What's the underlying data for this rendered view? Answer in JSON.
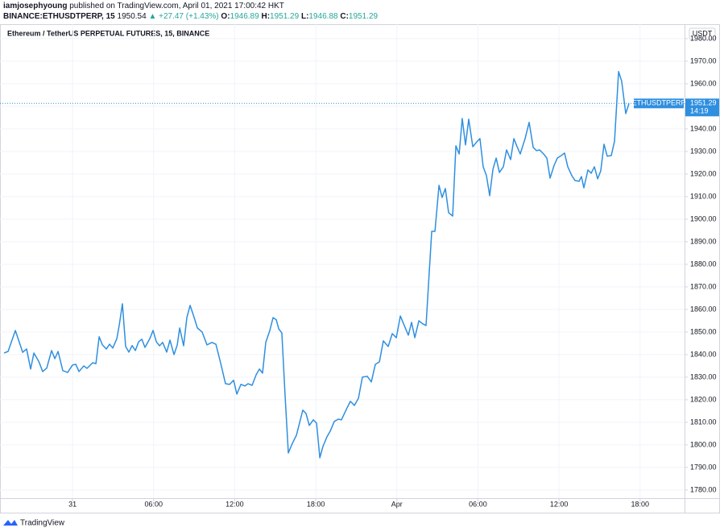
{
  "header": {
    "author": "iamjosephyoung",
    "published": "published on TradingView.com, April 01, 2021 17:00:42 HKT",
    "symbol": "BINANCE:ETHUSDTPERP, 15",
    "last": "1950.54",
    "change": "▲ +27.47 (+1.43%)",
    "open_label": "O:",
    "open": "1946.89",
    "high_label": "H:",
    "high": "1951.29",
    "low_label": "L:",
    "low": "1946.88",
    "close_label": "C:",
    "close": "1951.29"
  },
  "footer": {
    "brand": "TradingView"
  },
  "chart_data": {
    "type": "line",
    "title": "Ethereum / TetherUS PERPETUAL FUTURES, 15, BINANCE",
    "y_label": "USDT",
    "x": [
      -5.07,
      -4.77,
      -4.23,
      -3.69,
      -3.4,
      -3.1,
      -2.86,
      -2.5,
      -2.21,
      -1.91,
      -1.55,
      -1.31,
      -1.07,
      -0.72,
      -0.36,
      0,
      0.24,
      0.48,
      0.83,
      1.07,
      1.49,
      1.73,
      1.97,
      2.21,
      2.5,
      2.74,
      2.98,
      3.28,
      3.46,
      3.69,
      3.93,
      4.17,
      4.41,
      4.65,
      4.89,
      5.13,
      5.36,
      5.72,
      5.96,
      6.2,
      6.44,
      6.67,
      6.97,
      7.21,
      7.51,
      7.75,
      7.93,
      8.22,
      8.46,
      8.7,
      8.94,
      9.24,
      9.59,
      9.95,
      10.31,
      10.61,
      10.97,
      11.32,
      11.62,
      11.92,
      12.16,
      12.46,
      12.75,
      12.99,
      13.29,
      13.59,
      13.83,
      14.06,
      14.3,
      14.6,
      14.84,
      15.08,
      15.26,
      15.49,
      15.73,
      15.97,
      16.27,
      16.57,
      17.04,
      17.28,
      17.52,
      17.82,
      18.06,
      18.3,
      18.53,
      18.83,
      19.07,
      19.37,
      19.67,
      19.9,
      20.26,
      20.56,
      20.86,
      21.16,
      21.45,
      21.81,
      22.11,
      22.41,
      22.71,
      23.0,
      23.36,
      23.66,
      23.96,
      24.26,
      24.55,
      24.85,
      25.09,
      25.33,
      25.63,
      25.92,
      26.16,
      26.58,
      26.82,
      27.12,
      27.35,
      27.59,
      27.83,
      28.13,
      28.37,
      28.61,
      28.84,
      29.08,
      29.32,
      29.62,
      29.92,
      30.15,
      30.39,
      30.63,
      30.87,
      31.11,
      31.35,
      31.59,
      31.88,
      32.12,
      32.42,
      32.66,
      32.9,
      33.13,
      33.49,
      33.79,
      34.09,
      34.33,
      34.56,
      34.86,
      35.1,
      35.34,
      35.64,
      35.88,
      36.17,
      36.41,
      36.65,
      36.95,
      37.19,
      37.49,
      37.66,
      37.84,
      38.14,
      38.38,
      38.62,
      38.86,
      39.09,
      39.33,
      39.57,
      39.87,
      40.11,
      40.41,
      40.64,
      40.94,
      41.18
    ],
    "series": [
      {
        "name": "ETHUSDTPERP",
        "color": "#2e8fe0",
        "values": [
          1840.7,
          1841.4,
          1850.7,
          1841,
          1842.5,
          1833.6,
          1840.7,
          1837,
          1832.5,
          1834,
          1841.8,
          1838.2,
          1841.4,
          1832.9,
          1832.1,
          1835.4,
          1835.7,
          1832.5,
          1835,
          1833.9,
          1836.4,
          1836,
          1847.9,
          1844.3,
          1842.5,
          1844.6,
          1842.9,
          1847.1,
          1853.2,
          1862.5,
          1843.6,
          1841.1,
          1844,
          1841.8,
          1845.7,
          1846.8,
          1843.2,
          1847.1,
          1850.7,
          1845.7,
          1843.9,
          1845.4,
          1841.1,
          1846.4,
          1840,
          1844.3,
          1851.8,
          1843.9,
          1856.4,
          1861.8,
          1857.5,
          1851.8,
          1850,
          1844.3,
          1845.4,
          1844.6,
          1836,
          1827.1,
          1826.8,
          1828.6,
          1822.5,
          1826.8,
          1826.1,
          1827.1,
          1826.4,
          1831.1,
          1833.6,
          1831.8,
          1845.4,
          1850.7,
          1856.4,
          1855.4,
          1851.4,
          1849.6,
          1821.8,
          1796.4,
          1800.7,
          1804.3,
          1815.4,
          1813.9,
          1808.6,
          1811.1,
          1809.6,
          1794.3,
          1799.3,
          1803.6,
          1806.1,
          1810.4,
          1811.4,
          1811.1,
          1815.7,
          1819.3,
          1817.5,
          1820.7,
          1830,
          1830.4,
          1827.9,
          1835.7,
          1836.8,
          1846.1,
          1843.6,
          1849.3,
          1847.5,
          1857.1,
          1852.9,
          1848.6,
          1854.3,
          1847.5,
          1855,
          1853.6,
          1852.9,
          1894.6,
          1894.6,
          1915,
          1909.6,
          1913.6,
          1902.9,
          1901.4,
          1932.5,
          1928.9,
          1944.6,
          1932.9,
          1944.3,
          1932.1,
          1934.3,
          1935.7,
          1923.2,
          1919.3,
          1910.4,
          1922.1,
          1927.1,
          1920.7,
          1923.2,
          1930.7,
          1926.4,
          1935.7,
          1932.1,
          1928.9,
          1935.7,
          1942.9,
          1931.8,
          1930.4,
          1930.7,
          1928.9,
          1927.1,
          1918.2,
          1923.9,
          1927.1,
          1928.2,
          1929.3,
          1923.2,
          1919.3,
          1917.1,
          1916.8,
          1918.9,
          1913.9,
          1921.8,
          1920.4,
          1923.2,
          1917.9,
          1921.4,
          1933.2,
          1927.9,
          1928.2,
          1934.6,
          1965.4,
          1961.1,
          1946.8,
          1951.29
        ]
      }
    ],
    "last_price": 1951.29,
    "countdown": "14:19",
    "xlim": [
      -5.07,
      45.29
    ],
    "xticks": [
      {
        "value": 0,
        "label": "31"
      },
      {
        "value": 6,
        "label": "06:00"
      },
      {
        "value": 12,
        "label": "12:00"
      },
      {
        "value": 18,
        "label": "18:00"
      },
      {
        "value": 24,
        "label": "Apr"
      },
      {
        "value": 30,
        "label": "06:00"
      },
      {
        "value": 36,
        "label": "12:00"
      },
      {
        "value": 42,
        "label": "18:00"
      }
    ],
    "ylim": [
      1776.4,
      1986.4
    ],
    "yticks": [
      {
        "value": 1780,
        "label": "1780.00"
      },
      {
        "value": 1790,
        "label": "1790.00"
      },
      {
        "value": 1800,
        "label": "1800.00"
      },
      {
        "value": 1810,
        "label": "1810.00"
      },
      {
        "value": 1820,
        "label": "1820.00"
      },
      {
        "value": 1830,
        "label": "1830.00"
      },
      {
        "value": 1840,
        "label": "1840.00"
      },
      {
        "value": 1850,
        "label": "1850.00"
      },
      {
        "value": 1860,
        "label": "1860.00"
      },
      {
        "value": 1870,
        "label": "1870.00"
      },
      {
        "value": 1880,
        "label": "1880.00"
      },
      {
        "value": 1890,
        "label": "1890.00"
      },
      {
        "value": 1900,
        "label": "1900.00"
      },
      {
        "value": 1910,
        "label": "1910.00"
      },
      {
        "value": 1920,
        "label": "1920.00"
      },
      {
        "value": 1930,
        "label": "1930.00"
      },
      {
        "value": 1940,
        "label": "1940.00"
      },
      {
        "value": 1950,
        "label": "1950.00"
      },
      {
        "value": 1960,
        "label": "1960.00"
      },
      {
        "value": 1970,
        "label": "1970.00"
      },
      {
        "value": 1980,
        "label": "1980.00"
      }
    ],
    "grid": true
  }
}
